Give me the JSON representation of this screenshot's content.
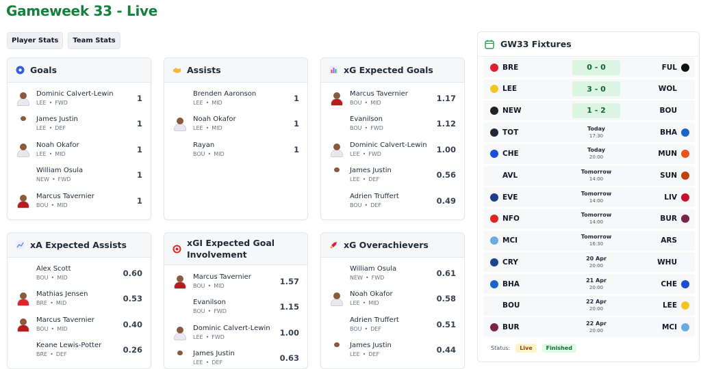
{
  "page_title": "Gameweek 33 - Live",
  "tabs": [
    "Player Stats",
    "Team Stats"
  ],
  "cards": [
    {
      "title": "Goals",
      "icon": "football-icon",
      "color": "#3b5bdb",
      "rows": [
        {
          "name": "Dominic Calvert-Lewin",
          "team": "LEE",
          "pos": "FWD",
          "value": "1",
          "avatar": "full",
          "kit": "#e8e8ee"
        },
        {
          "name": "James Justin",
          "team": "LEE",
          "pos": "DEF",
          "value": "1",
          "avatar": "small",
          "kit": "#ffffff"
        },
        {
          "name": "Noah Okafor",
          "team": "LEE",
          "pos": "MID",
          "value": "1",
          "avatar": "full",
          "kit": "#e8e8ee"
        },
        {
          "name": "William Osula",
          "team": "NEW",
          "pos": "FWD",
          "value": "1",
          "avatar": "none",
          "kit": ""
        },
        {
          "name": "Marcus Tavernier",
          "team": "BOU",
          "pos": "MID",
          "value": "1",
          "avatar": "full",
          "kit": "#b91c1c"
        }
      ]
    },
    {
      "title": "Assists",
      "icon": "handshake-icon",
      "color": "#f5b83d",
      "rows": [
        {
          "name": "Brenden Aaronson",
          "team": "LEE",
          "pos": "MID",
          "value": "1",
          "avatar": "none",
          "kit": ""
        },
        {
          "name": "Noah Okafor",
          "team": "LEE",
          "pos": "MID",
          "value": "1",
          "avatar": "full",
          "kit": "#e8e8ee"
        },
        {
          "name": "Rayan",
          "team": "BOU",
          "pos": "MID",
          "value": "1",
          "avatar": "none",
          "kit": ""
        }
      ]
    },
    {
      "title": "xG Expected Goals",
      "icon": "bar-chart-icon",
      "color": "#8b5cf6",
      "rows": [
        {
          "name": "Marcus Tavernier",
          "team": "BOU",
          "pos": "MID",
          "value": "1.17",
          "avatar": "full",
          "kit": "#b91c1c"
        },
        {
          "name": "Evanilson",
          "team": "BOU",
          "pos": "FWD",
          "value": "1.12",
          "avatar": "none",
          "kit": ""
        },
        {
          "name": "Dominic Calvert-Lewin",
          "team": "LEE",
          "pos": "FWD",
          "value": "1.00",
          "avatar": "full",
          "kit": "#e8e8ee"
        },
        {
          "name": "James Justin",
          "team": "LEE",
          "pos": "DEF",
          "value": "0.56",
          "avatar": "small",
          "kit": "#ffffff"
        },
        {
          "name": "Adrien Truffert",
          "team": "BOU",
          "pos": "DEF",
          "value": "0.49",
          "avatar": "none",
          "kit": ""
        }
      ]
    },
    {
      "title": "xA Expected Assists",
      "icon": "trend-up-icon",
      "color": "#6d8bd6",
      "rows": [
        {
          "name": "Alex Scott",
          "team": "BOU",
          "pos": "MID",
          "value": "0.60",
          "avatar": "none",
          "kit": ""
        },
        {
          "name": "Mathias Jensen",
          "team": "BRE",
          "pos": "MID",
          "value": "0.53",
          "avatar": "full",
          "kit": "#dc2626"
        },
        {
          "name": "Marcus Tavernier",
          "team": "BOU",
          "pos": "MID",
          "value": "0.40",
          "avatar": "full",
          "kit": "#b91c1c"
        },
        {
          "name": "Keane Lewis-Potter",
          "team": "BRE",
          "pos": "DEF",
          "value": "0.26",
          "avatar": "none",
          "kit": ""
        }
      ]
    },
    {
      "title": "xGI Expected Goal Involvement",
      "icon": "target-icon",
      "color": "#dc2626",
      "rows": [
        {
          "name": "Marcus Tavernier",
          "team": "BOU",
          "pos": "MID",
          "value": "1.57",
          "avatar": "full",
          "kit": "#b91c1c"
        },
        {
          "name": "Evanilson",
          "team": "BOU",
          "pos": "FWD",
          "value": "1.15",
          "avatar": "none",
          "kit": ""
        },
        {
          "name": "Dominic Calvert-Lewin",
          "team": "LEE",
          "pos": "FWD",
          "value": "1.00",
          "avatar": "full",
          "kit": "#e8e8ee"
        },
        {
          "name": "James Justin",
          "team": "LEE",
          "pos": "DEF",
          "value": "0.63",
          "avatar": "small",
          "kit": "#ffffff"
        }
      ]
    },
    {
      "title": "xG Overachievers",
      "icon": "rocket-icon",
      "color": "#e11d48",
      "rows": [
        {
          "name": "William Osula",
          "team": "NEW",
          "pos": "FWD",
          "value": "0.61",
          "avatar": "none",
          "kit": ""
        },
        {
          "name": "Noah Okafor",
          "team": "LEE",
          "pos": "MID",
          "value": "0.58",
          "avatar": "full",
          "kit": "#e8e8ee"
        },
        {
          "name": "Adrien Truffert",
          "team": "BOU",
          "pos": "DEF",
          "value": "0.51",
          "avatar": "none",
          "kit": ""
        },
        {
          "name": "James Justin",
          "team": "LEE",
          "pos": "DEF",
          "value": "0.44",
          "avatar": "small",
          "kit": "#ffffff"
        }
      ]
    }
  ],
  "fixtures": {
    "title": "GW33 Fixtures",
    "matches": [
      {
        "home": "BRE",
        "away": "FUL",
        "score": "0 - 0",
        "hc": "#e11d2e",
        "ac": "#111111"
      },
      {
        "home": "LEE",
        "away": "WOL",
        "score": "3 - 0",
        "hc": "#f3c623",
        "ac": ""
      },
      {
        "home": "NEW",
        "away": "BOU",
        "score": "1 - 2",
        "hc": "#222222",
        "ac": ""
      },
      {
        "home": "TOT",
        "away": "BHA",
        "day": "Today",
        "time": "17:30",
        "hc": "#1e293b",
        "ac": "#1d64c8"
      },
      {
        "home": "CHE",
        "away": "MUN",
        "day": "Today",
        "time": "20:00",
        "hc": "#1d4ed8",
        "ac": "#e8531e"
      },
      {
        "home": "AVL",
        "away": "SUN",
        "day": "Tomorrow",
        "time": "14:00",
        "hc": "",
        "ac": "#c2410c"
      },
      {
        "home": "EVE",
        "away": "LIV",
        "day": "Tomorrow",
        "time": "14:00",
        "hc": "#1e3a8a",
        "ac": "#c8102e"
      },
      {
        "home": "NFO",
        "away": "BUR",
        "day": "Tomorrow",
        "time": "14:00",
        "hc": "#dc2626",
        "ac": "#7a2548"
      },
      {
        "home": "MCI",
        "away": "ARS",
        "day": "Tomorrow",
        "time": "16:30",
        "hc": "#6cabdd",
        "ac": ""
      },
      {
        "home": "CRY",
        "away": "WHU",
        "day": "20 Apr",
        "time": "20:00",
        "hc": "#1b458f",
        "ac": ""
      },
      {
        "home": "BHA",
        "away": "CHE",
        "day": "21 Apr",
        "time": "20:00",
        "hc": "#1d64c8",
        "ac": "#1d4ed8"
      },
      {
        "home": "BOU",
        "away": "LEE",
        "day": "22 Apr",
        "time": "20:00",
        "hc": "",
        "ac": "#f3c623"
      },
      {
        "home": "BUR",
        "away": "MCI",
        "day": "22 Apr",
        "time": "20:00",
        "hc": "#7a2548",
        "ac": "#6cabdd"
      }
    ],
    "status_label": "Status:",
    "live_label": "Live",
    "finished_label": "Finished",
    "live_color": "#fef3c7",
    "finished_color": "#dcfce7"
  }
}
